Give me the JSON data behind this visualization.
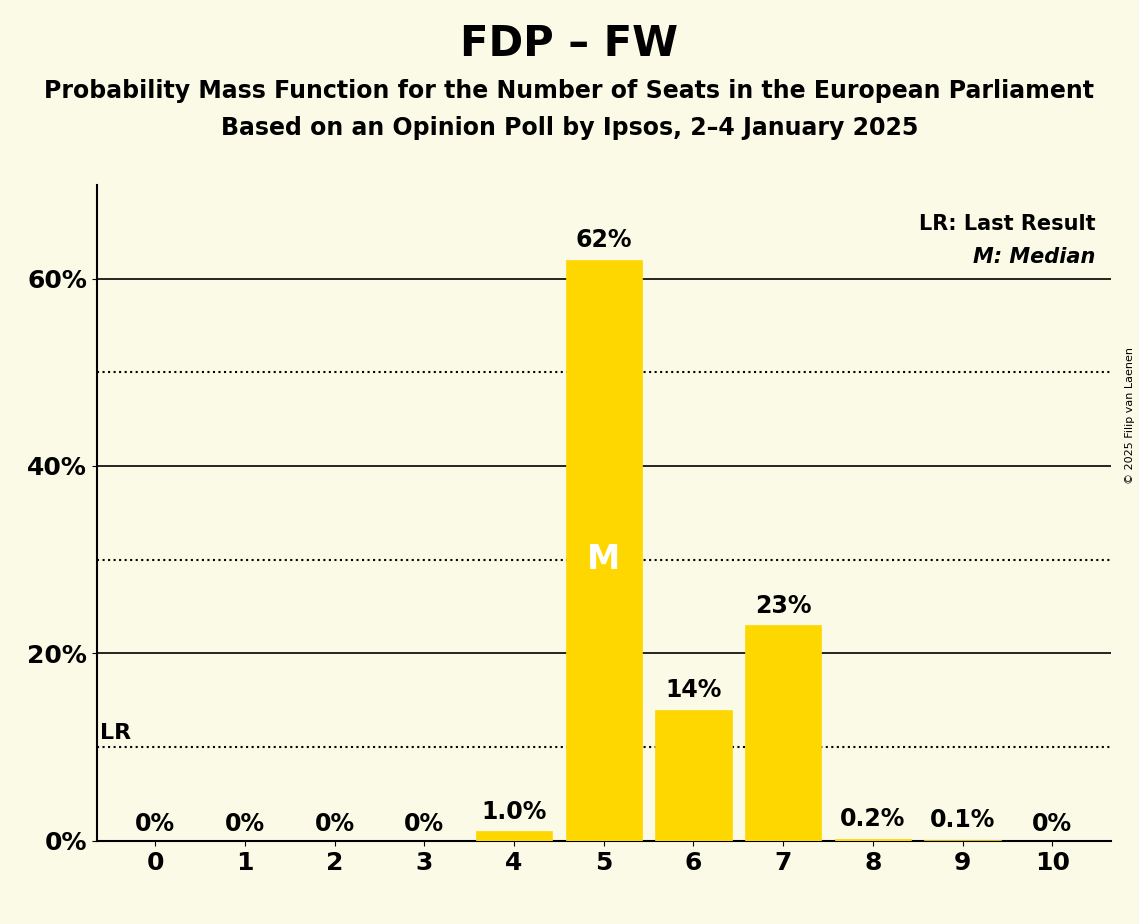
{
  "title": "FDP – FW",
  "subtitle1": "Probability Mass Function for the Number of Seats in the European Parliament",
  "subtitle2": "Based on an Opinion Poll by Ipsos, 2–4 January 2025",
  "copyright": "© 2025 Filip van Laenen",
  "seats": [
    0,
    1,
    2,
    3,
    4,
    5,
    6,
    7,
    8,
    9,
    10
  ],
  "probabilities": [
    0.0,
    0.0,
    0.0,
    0.0,
    1.0,
    62.0,
    14.0,
    23.0,
    0.2,
    0.1,
    0.0
  ],
  "prob_labels": [
    "0%",
    "0%",
    "0%",
    "0%",
    "1.0%",
    "62%",
    "14%",
    "23%",
    "0.2%",
    "0.1%",
    "0%"
  ],
  "bar_color": "#FFD700",
  "background_color": "#FAFAE6",
  "median_seat": 5,
  "lr_value": 10.0,
  "y_ticks": [
    0,
    20,
    40,
    60
  ],
  "y_tick_labels": [
    "0%",
    "20%",
    "40%",
    "60%"
  ],
  "solid_lines": [
    20.0,
    40.0,
    60.0
  ],
  "dotted_lines": [
    10.0,
    30.0,
    50.0
  ],
  "title_fontsize": 30,
  "subtitle_fontsize": 17,
  "value_label_fontsize": 17,
  "axis_tick_fontsize": 18,
  "legend_fontsize": 15,
  "lr_label_fontsize": 16
}
